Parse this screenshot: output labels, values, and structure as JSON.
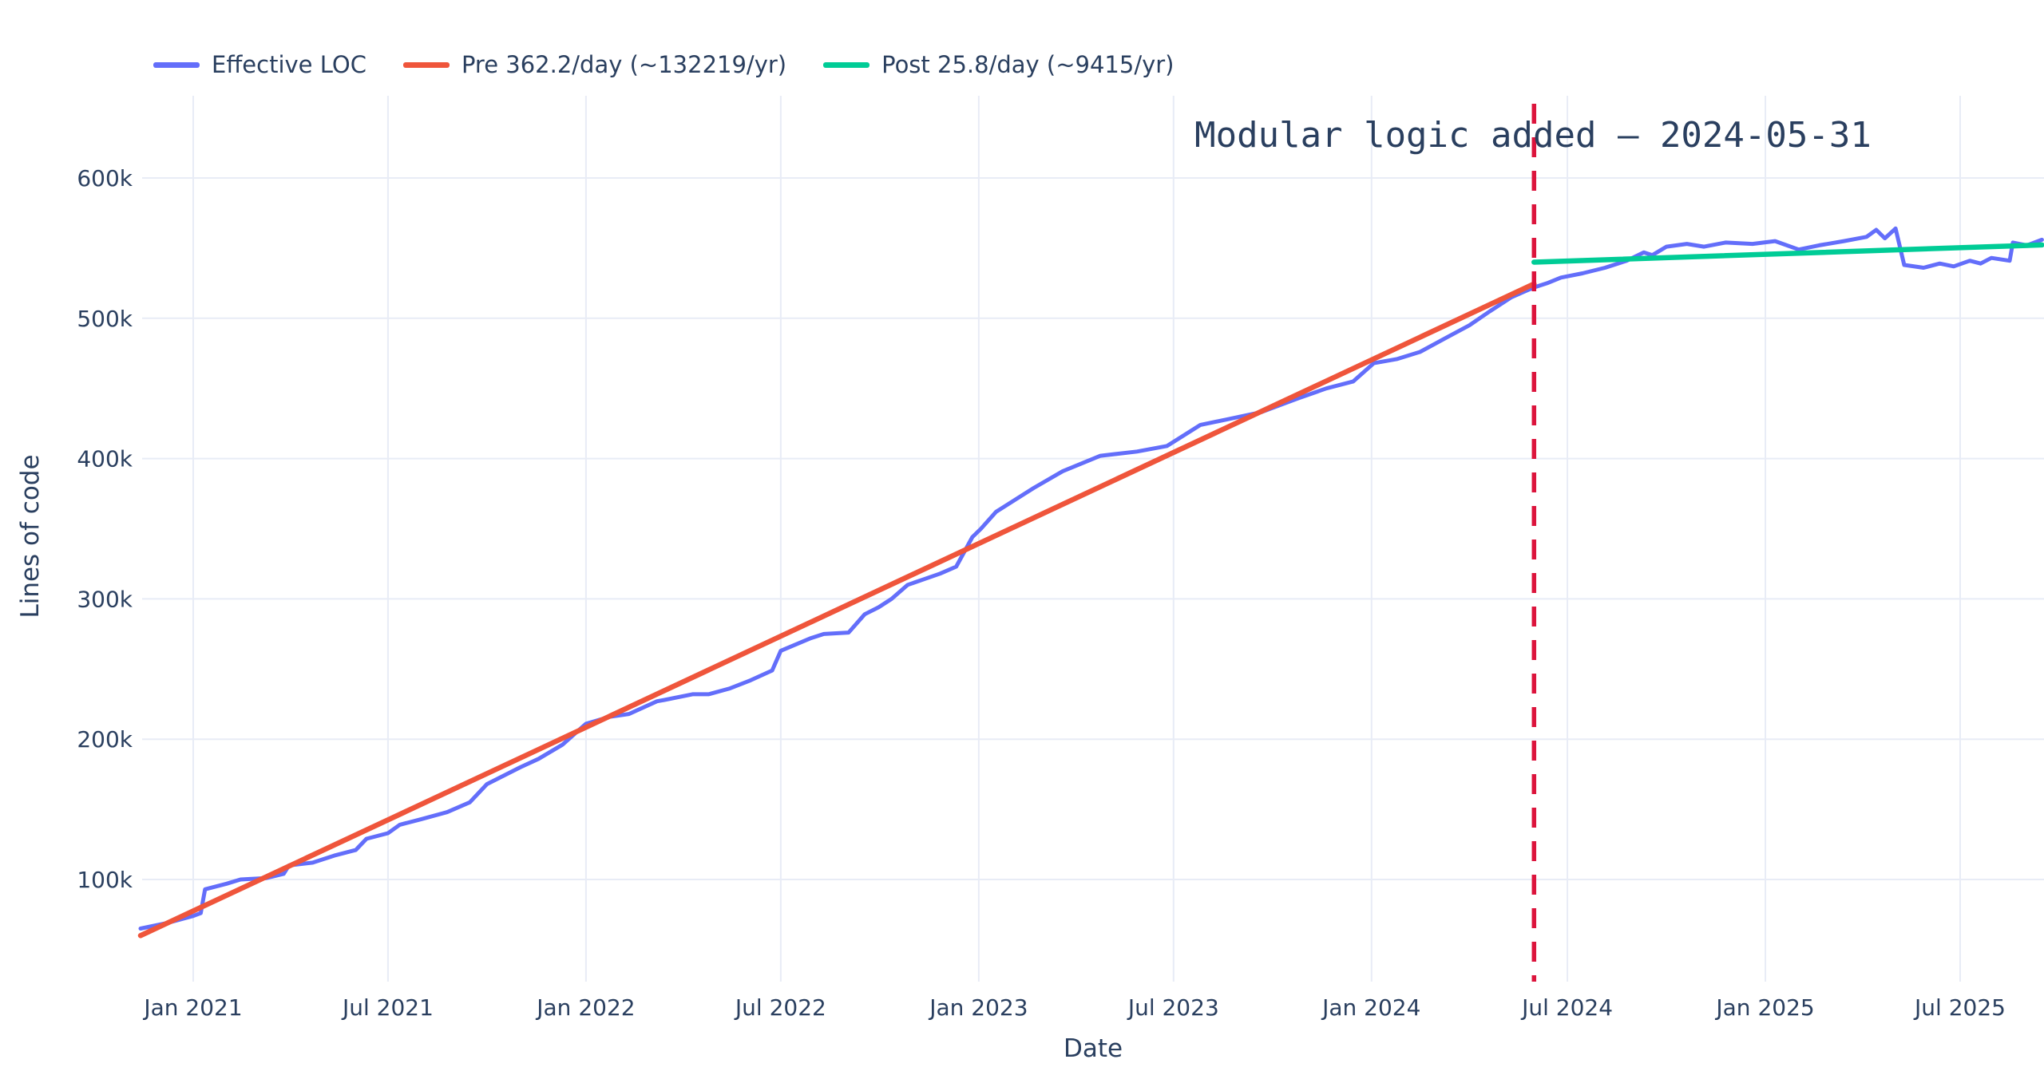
{
  "figure": {
    "background": "#ffffff",
    "font_color": "#2a3f5f",
    "grid_color": "#e8ecf6"
  },
  "legend": {
    "items": [
      {
        "label": "Effective LOC",
        "color": "#636efa"
      },
      {
        "label": "Pre 362.2/day (~132219/yr)",
        "color": "#ef553b"
      },
      {
        "label": "Post 25.8/day (~9415/yr)",
        "color": "#00cc96"
      }
    ]
  },
  "annotation": {
    "text": "Modular logic added — 2024-05-31"
  },
  "axes": {
    "x": {
      "title": "Date"
    },
    "y": {
      "title": "Lines of code"
    }
  },
  "chart_data": {
    "type": "line",
    "title": "Modular logic added — 2024-05-31",
    "xlabel": "Date",
    "ylabel": "Lines of code",
    "x_range": [
      "2020-11-13",
      "2025-09-15"
    ],
    "ylim": [
      27000,
      658000
    ],
    "grid": true,
    "legend_position": "top-left-horizontal",
    "x_ticks": [
      {
        "date": "2021-01-01",
        "label": "Jan 2021"
      },
      {
        "date": "2021-07-01",
        "label": "Jul 2021"
      },
      {
        "date": "2022-01-01",
        "label": "Jan 2022"
      },
      {
        "date": "2022-07-01",
        "label": "Jul 2022"
      },
      {
        "date": "2023-01-01",
        "label": "Jan 2023"
      },
      {
        "date": "2023-07-01",
        "label": "Jul 2023"
      },
      {
        "date": "2024-01-01",
        "label": "Jan 2024"
      },
      {
        "date": "2024-07-01",
        "label": "Jul 2024"
      },
      {
        "date": "2025-01-01",
        "label": "Jan 2025"
      },
      {
        "date": "2025-07-01",
        "label": "Jul 2025"
      }
    ],
    "y_ticks": [
      {
        "value": 100000,
        "label": "100k"
      },
      {
        "value": 200000,
        "label": "200k"
      },
      {
        "value": 300000,
        "label": "300k"
      },
      {
        "value": 400000,
        "label": "400k"
      },
      {
        "value": 500000,
        "label": "500k"
      },
      {
        "value": 600000,
        "label": "600k"
      }
    ],
    "vline": {
      "date": "2024-05-31",
      "color": "#dc143c",
      "style": "dashed",
      "label": "Modular logic added — 2024-05-31"
    },
    "series": [
      {
        "name": "Effective LOC",
        "color": "#636efa",
        "width": 5,
        "points": [
          [
            "2020-11-13",
            65000
          ],
          [
            "2020-12-08",
            69000
          ],
          [
            "2021-01-01",
            74000
          ],
          [
            "2021-01-08",
            76000
          ],
          [
            "2021-01-12",
            93000
          ],
          [
            "2021-02-01",
            97000
          ],
          [
            "2021-02-14",
            100000
          ],
          [
            "2021-03-10",
            101000
          ],
          [
            "2021-03-26",
            104000
          ],
          [
            "2021-03-31",
            110000
          ],
          [
            "2021-04-22",
            112000
          ],
          [
            "2021-05-12",
            117000
          ],
          [
            "2021-06-01",
            121000
          ],
          [
            "2021-06-11",
            129000
          ],
          [
            "2021-07-01",
            133000
          ],
          [
            "2021-07-12",
            139000
          ],
          [
            "2021-08-01",
            143000
          ],
          [
            "2021-08-25",
            148000
          ],
          [
            "2021-09-15",
            155000
          ],
          [
            "2021-10-01",
            168000
          ],
          [
            "2021-11-01",
            180000
          ],
          [
            "2021-11-18",
            186000
          ],
          [
            "2021-12-10",
            196000
          ],
          [
            "2022-01-01",
            211000
          ],
          [
            "2022-01-23",
            216000
          ],
          [
            "2022-02-10",
            218000
          ],
          [
            "2022-03-08",
            227000
          ],
          [
            "2022-03-15",
            228000
          ],
          [
            "2022-04-10",
            232000
          ],
          [
            "2022-04-25",
            232000
          ],
          [
            "2022-05-14",
            236000
          ],
          [
            "2022-06-03",
            242000
          ],
          [
            "2022-06-23",
            249000
          ],
          [
            "2022-07-01",
            263000
          ],
          [
            "2022-07-29",
            272000
          ],
          [
            "2022-08-10",
            275000
          ],
          [
            "2022-09-02",
            276000
          ],
          [
            "2022-09-17",
            289000
          ],
          [
            "2022-09-30",
            294000
          ],
          [
            "2022-10-12",
            300000
          ],
          [
            "2022-10-27",
            310000
          ],
          [
            "2022-11-11",
            314000
          ],
          [
            "2022-11-26",
            318000
          ],
          [
            "2022-12-11",
            323000
          ],
          [
            "2022-12-26",
            344000
          ],
          [
            "2023-01-03",
            350000
          ],
          [
            "2023-01-17",
            362000
          ],
          [
            "2023-02-21",
            379000
          ],
          [
            "2023-03-20",
            391000
          ],
          [
            "2023-04-24",
            402000
          ],
          [
            "2023-05-28",
            405000
          ],
          [
            "2023-06-25",
            409000
          ],
          [
            "2023-07-26",
            424000
          ],
          [
            "2023-08-20",
            428000
          ],
          [
            "2023-09-20",
            433000
          ],
          [
            "2023-10-25",
            443000
          ],
          [
            "2023-11-20",
            450000
          ],
          [
            "2023-12-15",
            455000
          ],
          [
            "2024-01-03",
            468000
          ],
          [
            "2024-01-25",
            471000
          ],
          [
            "2024-02-15",
            476000
          ],
          [
            "2024-03-10",
            486000
          ],
          [
            "2024-04-01",
            495000
          ],
          [
            "2024-04-20",
            505000
          ],
          [
            "2024-05-10",
            515000
          ],
          [
            "2024-05-31",
            522000
          ],
          [
            "2024-06-12",
            525000
          ],
          [
            "2024-06-25",
            529000
          ],
          [
            "2024-07-15",
            532000
          ],
          [
            "2024-08-05",
            536000
          ],
          [
            "2024-08-25",
            541000
          ],
          [
            "2024-09-10",
            547000
          ],
          [
            "2024-09-18",
            545000
          ],
          [
            "2024-10-01",
            551000
          ],
          [
            "2024-10-20",
            553000
          ],
          [
            "2024-11-05",
            551000
          ],
          [
            "2024-11-25",
            554000
          ],
          [
            "2024-12-20",
            553000
          ],
          [
            "2025-01-10",
            555000
          ],
          [
            "2025-02-01",
            549000
          ],
          [
            "2025-02-20",
            552000
          ],
          [
            "2025-03-15",
            555000
          ],
          [
            "2025-04-05",
            558000
          ],
          [
            "2025-04-14",
            563000
          ],
          [
            "2025-04-22",
            557000
          ],
          [
            "2025-05-02",
            564000
          ],
          [
            "2025-05-10",
            538000
          ],
          [
            "2025-05-28",
            536000
          ],
          [
            "2025-06-12",
            539000
          ],
          [
            "2025-06-25",
            537000
          ],
          [
            "2025-07-10",
            541000
          ],
          [
            "2025-07-20",
            539000
          ],
          [
            "2025-07-30",
            543000
          ],
          [
            "2025-08-16",
            541000
          ],
          [
            "2025-08-19",
            554000
          ],
          [
            "2025-09-01",
            552000
          ],
          [
            "2025-09-15",
            556000
          ]
        ]
      },
      {
        "name": "Pre 362.2/day (~132219/yr)",
        "color": "#ef553b",
        "width": 6.5,
        "points": [
          [
            "2020-11-13",
            60000
          ],
          [
            "2024-05-31",
            524500
          ]
        ]
      },
      {
        "name": "Post 25.8/day (~9415/yr)",
        "color": "#00cc96",
        "width": 6.5,
        "points": [
          [
            "2024-05-31",
            540000
          ],
          [
            "2025-09-15",
            552300
          ]
        ]
      }
    ]
  }
}
